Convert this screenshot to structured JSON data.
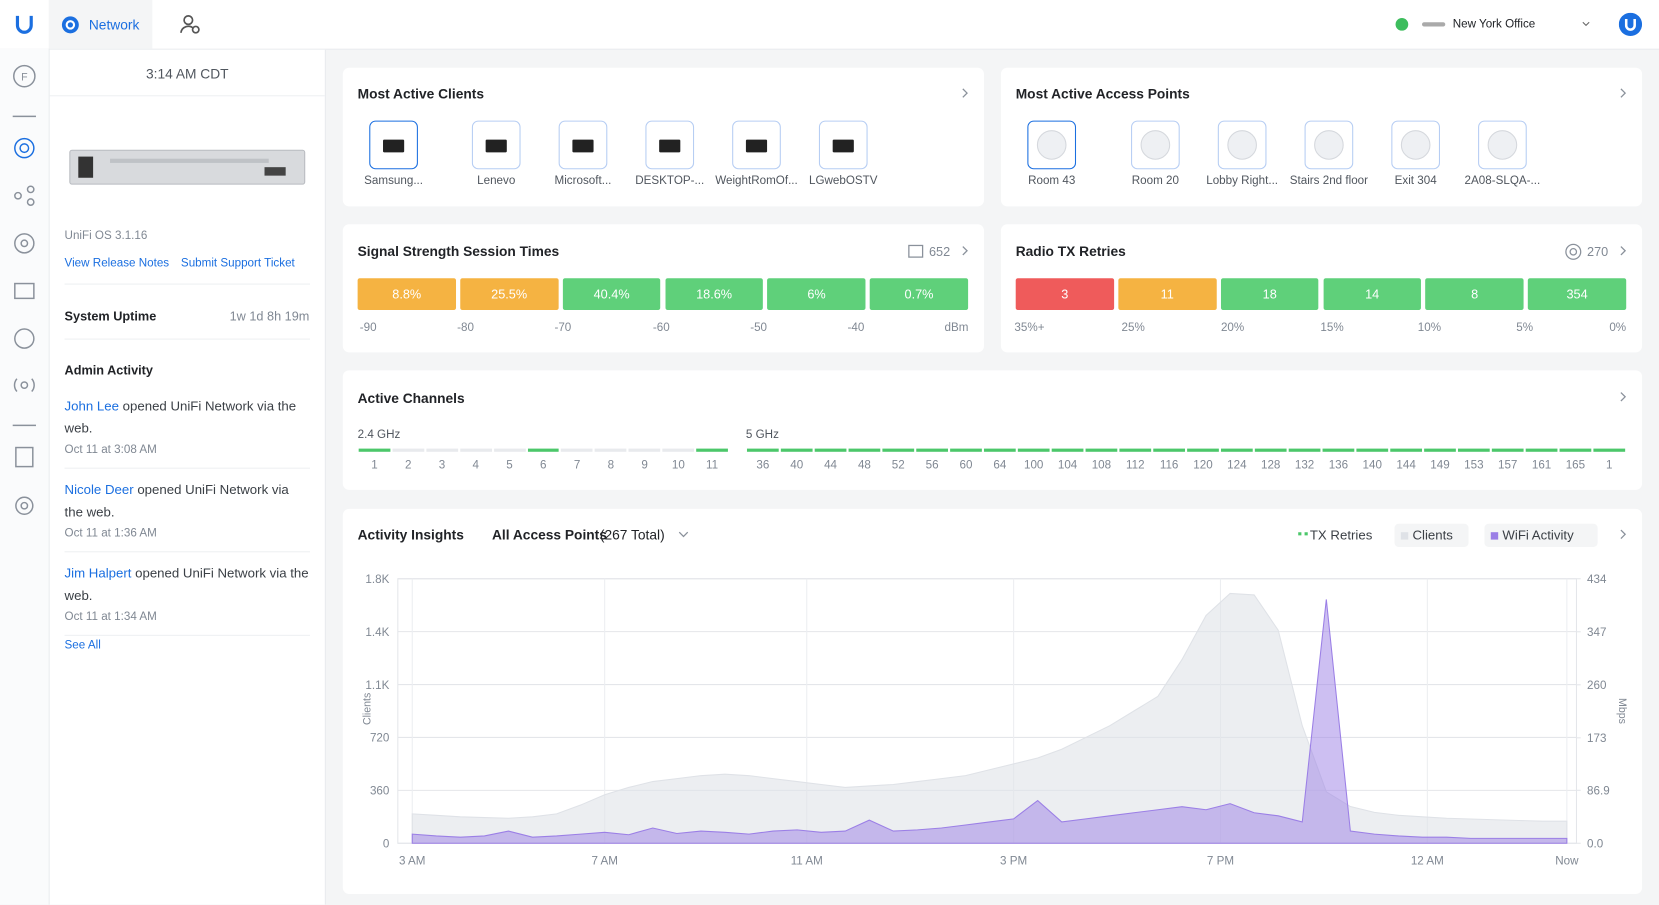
{
  "nav": {
    "app": "Network",
    "site": "New York Office"
  },
  "sidebar": {
    "time": "3:14 AM CDT",
    "os_version": "UniFi OS 3.1.16",
    "links": [
      "View Release Notes",
      "Submit Support Ticket"
    ],
    "uptime_label": "System Uptime",
    "uptime": "1w 1d 8h 19m",
    "admin_title": "Admin Activity",
    "activities": [
      {
        "user": "John Lee",
        "action": "opened UniFi Network via the web.",
        "time": "Oct 11 at 3:08 AM"
      },
      {
        "user": "Nicole Deer",
        "action": "opened UniFi Network via the web.",
        "time": "Oct 11 at 1:36 AM"
      },
      {
        "user": "Jim Halpert",
        "action": "opened UniFi Network via the web.",
        "time": "Oct 11 at 1:34 AM"
      }
    ],
    "see_all": "See All"
  },
  "clients": {
    "title": "Most Active Clients",
    "items": [
      "Samsung...",
      "Lenevo",
      "Microsoft...",
      "DESKTOP-...",
      "WeightRomOf...",
      "LGwebOSTV"
    ]
  },
  "access_points": {
    "title": "Most Active Access Points",
    "items": [
      "Room 43",
      "Room 20",
      "Lobby Right...",
      "Stairs 2nd floor",
      "Exit 304",
      "2A08-SLQA-..."
    ]
  },
  "signal": {
    "title": "Signal Strength Session Times",
    "count": 652,
    "segments": [
      {
        "label": "8.8%",
        "color": "#f5b342"
      },
      {
        "label": "25.5%",
        "color": "#f5b342"
      },
      {
        "label": "40.4%",
        "color": "#5fd07a"
      },
      {
        "label": "18.6%",
        "color": "#5fd07a"
      },
      {
        "label": "6%",
        "color": "#5fd07a"
      },
      {
        "label": "0.7%",
        "color": "#5fd07a"
      }
    ],
    "axis": [
      "-90",
      "-80",
      "-70",
      "-60",
      "-50",
      "-40",
      "dBm"
    ]
  },
  "retries": {
    "title": "Radio TX Retries",
    "count": 270,
    "segments": [
      {
        "label": "3",
        "color": "#ef5b5b"
      },
      {
        "label": "11",
        "color": "#f5b342"
      },
      {
        "label": "18",
        "color": "#5fd07a"
      },
      {
        "label": "14",
        "color": "#5fd07a"
      },
      {
        "label": "8",
        "color": "#5fd07a"
      },
      {
        "label": "354",
        "color": "#5fd07a"
      }
    ],
    "axis": [
      "35%+",
      "25%",
      "20%",
      "15%",
      "10%",
      "5%",
      "0%"
    ]
  },
  "channels": {
    "title": "Active Channels",
    "bands": [
      {
        "name": "2.4 GHz",
        "channels": [
          "1",
          "2",
          "3",
          "4",
          "5",
          "6",
          "7",
          "8",
          "9",
          "10",
          "11"
        ],
        "active": [
          true,
          false,
          false,
          false,
          false,
          true,
          false,
          false,
          false,
          false,
          true
        ]
      },
      {
        "name": "5 GHz",
        "channels": [
          "36",
          "40",
          "44",
          "48",
          "52",
          "56",
          "60",
          "64",
          "100",
          "104",
          "108",
          "112",
          "116",
          "120",
          "124",
          "128",
          "132",
          "136",
          "140",
          "144",
          "149",
          "153",
          "157",
          "161",
          "165",
          "1"
        ],
        "active": [
          true,
          true,
          true,
          true,
          true,
          true,
          true,
          true,
          true,
          true,
          true,
          true,
          true,
          true,
          true,
          true,
          true,
          true,
          true,
          true,
          true,
          true,
          true,
          true,
          true,
          true
        ]
      }
    ]
  },
  "activity_insights": {
    "title": "Activity Insights",
    "filter": "All Access Points",
    "filter_count": "(267 Total)",
    "chart": {
      "type": "area",
      "ylabel": "Clients",
      "y2label": "Mbps",
      "x": [
        0,
        0.5,
        1,
        1.5,
        2,
        2.5,
        3,
        3.5,
        4,
        4.5,
        5,
        5.5,
        6,
        6.5,
        7,
        7.5,
        8,
        8.5,
        9,
        9.5,
        10,
        10.5,
        11,
        11.5,
        12,
        12.5,
        13,
        13.5,
        14,
        14.5,
        15,
        15.5,
        16,
        16.5,
        17,
        17.5,
        18,
        18.5,
        19,
        19.5,
        20,
        20.5,
        21,
        21.5,
        22,
        22.5,
        23,
        23.5,
        24
      ],
      "xlim": [
        -0.3,
        24.2
      ],
      "xticks": [
        {
          "value": 0,
          "label": "3 AM"
        },
        {
          "value": 4,
          "label": "7 AM"
        },
        {
          "value": 8.2,
          "label": "11 AM"
        },
        {
          "value": 12.5,
          "label": "3 PM"
        },
        {
          "value": 16.8,
          "label": "7 PM"
        },
        {
          "value": 21.1,
          "label": "12 AM"
        },
        {
          "value": 24,
          "label": "Now"
        }
      ],
      "ylim": [
        0,
        1800
      ],
      "yticks": [
        0,
        360,
        720,
        {
          "value": 1080,
          "label": "1.1K"
        },
        {
          "value": 1440,
          "label": "1.4K"
        },
        {
          "value": 1800,
          "label": "1.8K"
        }
      ],
      "y2lim": [
        0,
        434
      ],
      "y2ticks": [
        {
          "value": 0,
          "label": "0.0"
        },
        86.9,
        173,
        260,
        347,
        434
      ],
      "series": [
        {
          "name": "TX Retries",
          "color": "#4cc76a"
        },
        {
          "name": "Clients",
          "color": "#dfe2e7",
          "values": [
            200,
            190,
            180,
            175,
            170,
            180,
            200,
            260,
            330,
            380,
            420,
            440,
            460,
            470,
            460,
            440,
            420,
            400,
            380,
            390,
            400,
            420,
            440,
            460,
            500,
            540,
            580,
            640,
            720,
            800,
            900,
            1000,
            1250,
            1550,
            1700,
            1690,
            1450,
            800,
            350,
            250,
            210,
            190,
            180,
            170,
            165,
            160,
            155,
            150,
            150
          ]
        },
        {
          "name": "WiFi Activity",
          "color": "#9b7fe6",
          "axis": "y2",
          "values": [
            15,
            12,
            10,
            12,
            20,
            10,
            12,
            15,
            18,
            14,
            25,
            16,
            20,
            18,
            15,
            20,
            22,
            18,
            20,
            38,
            20,
            22,
            25,
            30,
            35,
            40,
            70,
            35,
            40,
            45,
            50,
            55,
            60,
            55,
            65,
            50,
            45,
            35,
            400,
            20,
            15,
            12,
            10,
            10,
            8,
            8,
            8,
            8,
            8
          ]
        }
      ]
    }
  }
}
